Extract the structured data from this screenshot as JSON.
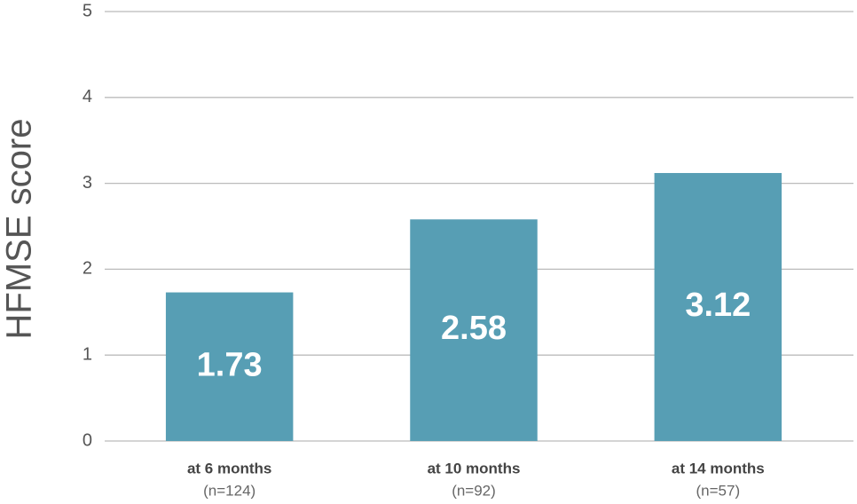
{
  "chart_data": {
    "type": "bar",
    "y_label": "HFMSE score",
    "categories": [
      "at 6 months",
      "at 10 months",
      "at 14 months"
    ],
    "category_sublabels": [
      "(n=124)",
      "(n=92)",
      "(n=57)"
    ],
    "values": [
      1.73,
      2.58,
      3.12
    ],
    "color": "#579eb4",
    "ylim": [
      0,
      5
    ],
    "yticks": [
      0,
      1,
      2,
      3,
      4,
      5
    ],
    "grid": true
  }
}
